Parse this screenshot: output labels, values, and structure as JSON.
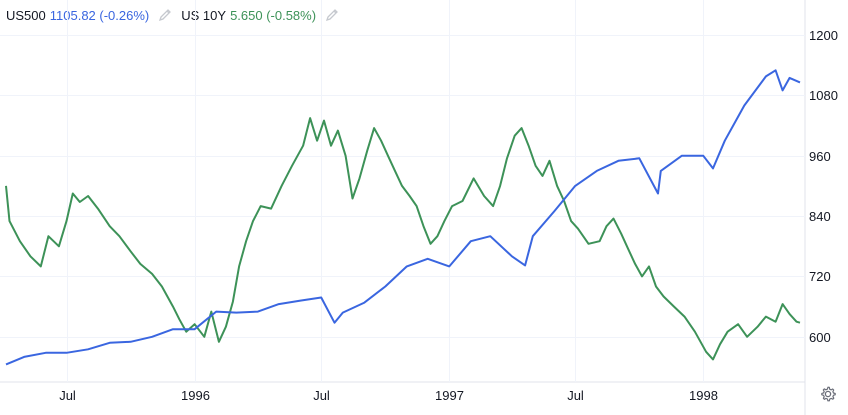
{
  "legend": [
    {
      "symbol": "US500",
      "value": "1105.82 (-0.26%)",
      "color": "#3a66e0",
      "icon": "pencil-icon"
    },
    {
      "symbol": "US 10Y",
      "value": "5.650 (-0.58%)",
      "color": "#3d9258",
      "icon": "pencil-icon"
    }
  ],
  "settings_icon": "gear-icon",
  "chart_data": {
    "type": "line",
    "y_ticks": [
      "1200",
      "1080",
      "960",
      "840",
      "720",
      "600"
    ],
    "y_tick_values": [
      1200,
      1080,
      960,
      840,
      720,
      600
    ],
    "ylim": [
      510,
      1250
    ],
    "x_ticks": [
      "Jul",
      "1996",
      "Jul",
      "1997",
      "Jul",
      "1998"
    ],
    "x_tick_dates": [
      "1995-07-01",
      "1996-01-01",
      "1996-07-01",
      "1997-01-01",
      "1997-07-01",
      "1998-01-01"
    ],
    "xlim": [
      "1995-04-05",
      "1998-05-20"
    ],
    "grid": true,
    "series": [
      {
        "name": "US500",
        "color": "#3a66e0",
        "points": [
          [
            "1995-04-05",
            545
          ],
          [
            "1995-05-01",
            560
          ],
          [
            "1995-06-01",
            568
          ],
          [
            "1995-07-01",
            568
          ],
          [
            "1995-08-01",
            575
          ],
          [
            "1995-09-01",
            588
          ],
          [
            "1995-10-01",
            590
          ],
          [
            "1995-11-01",
            600
          ],
          [
            "1995-12-01",
            615
          ],
          [
            "1996-01-01",
            615
          ],
          [
            "1996-02-01",
            650
          ],
          [
            "1996-03-01",
            648
          ],
          [
            "1996-04-01",
            650
          ],
          [
            "1996-05-01",
            665
          ],
          [
            "1996-06-01",
            672
          ],
          [
            "1996-07-01",
            678
          ],
          [
            "1996-07-20",
            628
          ],
          [
            "1996-08-01",
            648
          ],
          [
            "1996-09-01",
            668
          ],
          [
            "1996-10-01",
            700
          ],
          [
            "1996-11-01",
            740
          ],
          [
            "1996-12-01",
            755
          ],
          [
            "1997-01-01",
            740
          ],
          [
            "1997-02-01",
            790
          ],
          [
            "1997-03-01",
            800
          ],
          [
            "1997-04-01",
            760
          ],
          [
            "1997-04-20",
            742
          ],
          [
            "1997-05-01",
            800
          ],
          [
            "1997-06-01",
            850
          ],
          [
            "1997-07-01",
            900
          ],
          [
            "1997-08-01",
            930
          ],
          [
            "1997-09-01",
            950
          ],
          [
            "1997-10-01",
            955
          ],
          [
            "1997-10-28",
            885
          ],
          [
            "1997-11-01",
            930
          ],
          [
            "1997-12-01",
            960
          ],
          [
            "1998-01-01",
            960
          ],
          [
            "1998-01-15",
            935
          ],
          [
            "1998-02-01",
            990
          ],
          [
            "1998-03-01",
            1060
          ],
          [
            "1998-04-01",
            1118
          ],
          [
            "1998-04-15",
            1130
          ],
          [
            "1998-04-25",
            1090
          ],
          [
            "1998-05-05",
            1115
          ],
          [
            "1998-05-20",
            1106
          ]
        ]
      },
      {
        "name": "US 10Y",
        "color": "#3d9258",
        "points": [
          [
            "1995-04-05",
            900
          ],
          [
            "1995-04-10",
            830
          ],
          [
            "1995-04-25",
            790
          ],
          [
            "1995-05-10",
            760
          ],
          [
            "1995-05-25",
            740
          ],
          [
            "1995-06-05",
            800
          ],
          [
            "1995-06-20",
            780
          ],
          [
            "1995-07-01",
            830
          ],
          [
            "1995-07-10",
            885
          ],
          [
            "1995-07-20",
            868
          ],
          [
            "1995-08-01",
            880
          ],
          [
            "1995-08-15",
            855
          ],
          [
            "1995-09-01",
            820
          ],
          [
            "1995-09-15",
            800
          ],
          [
            "1995-10-01",
            770
          ],
          [
            "1995-10-15",
            745
          ],
          [
            "1995-11-01",
            725
          ],
          [
            "1995-11-15",
            700
          ],
          [
            "1995-12-01",
            660
          ],
          [
            "1995-12-10",
            635
          ],
          [
            "1995-12-20",
            610
          ],
          [
            "1996-01-01",
            625
          ],
          [
            "1996-01-15",
            600
          ],
          [
            "1996-01-25",
            650
          ],
          [
            "1996-02-05",
            590
          ],
          [
            "1996-02-15",
            620
          ],
          [
            "1996-02-25",
            670
          ],
          [
            "1996-03-05",
            740
          ],
          [
            "1996-03-15",
            790
          ],
          [
            "1996-03-25",
            830
          ],
          [
            "1996-04-05",
            860
          ],
          [
            "1996-04-20",
            855
          ],
          [
            "1996-05-05",
            900
          ],
          [
            "1996-05-20",
            940
          ],
          [
            "1996-06-05",
            980
          ],
          [
            "1996-06-15",
            1035
          ],
          [
            "1996-06-25",
            990
          ],
          [
            "1996-07-05",
            1030
          ],
          [
            "1996-07-15",
            980
          ],
          [
            "1996-07-25",
            1010
          ],
          [
            "1996-08-05",
            960
          ],
          [
            "1996-08-15",
            875
          ],
          [
            "1996-08-25",
            915
          ],
          [
            "1996-09-05",
            970
          ],
          [
            "1996-09-15",
            1015
          ],
          [
            "1996-09-25",
            990
          ],
          [
            "1996-10-05",
            960
          ],
          [
            "1996-10-15",
            930
          ],
          [
            "1996-10-25",
            900
          ],
          [
            "1996-11-05",
            880
          ],
          [
            "1996-11-15",
            860
          ],
          [
            "1996-11-25",
            820
          ],
          [
            "1996-12-05",
            785
          ],
          [
            "1996-12-15",
            800
          ],
          [
            "1996-12-25",
            830
          ],
          [
            "1997-01-05",
            860
          ],
          [
            "1997-01-20",
            870
          ],
          [
            "1997-02-05",
            915
          ],
          [
            "1997-02-20",
            880
          ],
          [
            "1997-03-05",
            860
          ],
          [
            "1997-03-15",
            900
          ],
          [
            "1997-03-25",
            955
          ],
          [
            "1997-04-05",
            1000
          ],
          [
            "1997-04-15",
            1015
          ],
          [
            "1997-04-25",
            980
          ],
          [
            "1997-05-05",
            940
          ],
          [
            "1997-05-15",
            920
          ],
          [
            "1997-05-25",
            950
          ],
          [
            "1997-06-05",
            900
          ],
          [
            "1997-06-15",
            870
          ],
          [
            "1997-06-25",
            830
          ],
          [
            "1997-07-05",
            815
          ],
          [
            "1997-07-20",
            785
          ],
          [
            "1997-08-05",
            790
          ],
          [
            "1997-08-15",
            820
          ],
          [
            "1997-08-25",
            835
          ],
          [
            "1997-09-05",
            805
          ],
          [
            "1997-09-15",
            775
          ],
          [
            "1997-09-25",
            745
          ],
          [
            "1997-10-05",
            720
          ],
          [
            "1997-10-15",
            740
          ],
          [
            "1997-10-25",
            700
          ],
          [
            "1997-11-05",
            680
          ],
          [
            "1997-11-20",
            660
          ],
          [
            "1997-12-05",
            640
          ],
          [
            "1997-12-20",
            610
          ],
          [
            "1998-01-05",
            570
          ],
          [
            "1998-01-15",
            555
          ],
          [
            "1998-01-25",
            585
          ],
          [
            "1998-02-05",
            610
          ],
          [
            "1998-02-20",
            625
          ],
          [
            "1998-03-05",
            600
          ],
          [
            "1998-03-20",
            620
          ],
          [
            "1998-04-01",
            640
          ],
          [
            "1998-04-15",
            630
          ],
          [
            "1998-04-25",
            665
          ],
          [
            "1998-05-05",
            645
          ],
          [
            "1998-05-15",
            630
          ],
          [
            "1998-05-20",
            628
          ]
        ]
      }
    ]
  }
}
